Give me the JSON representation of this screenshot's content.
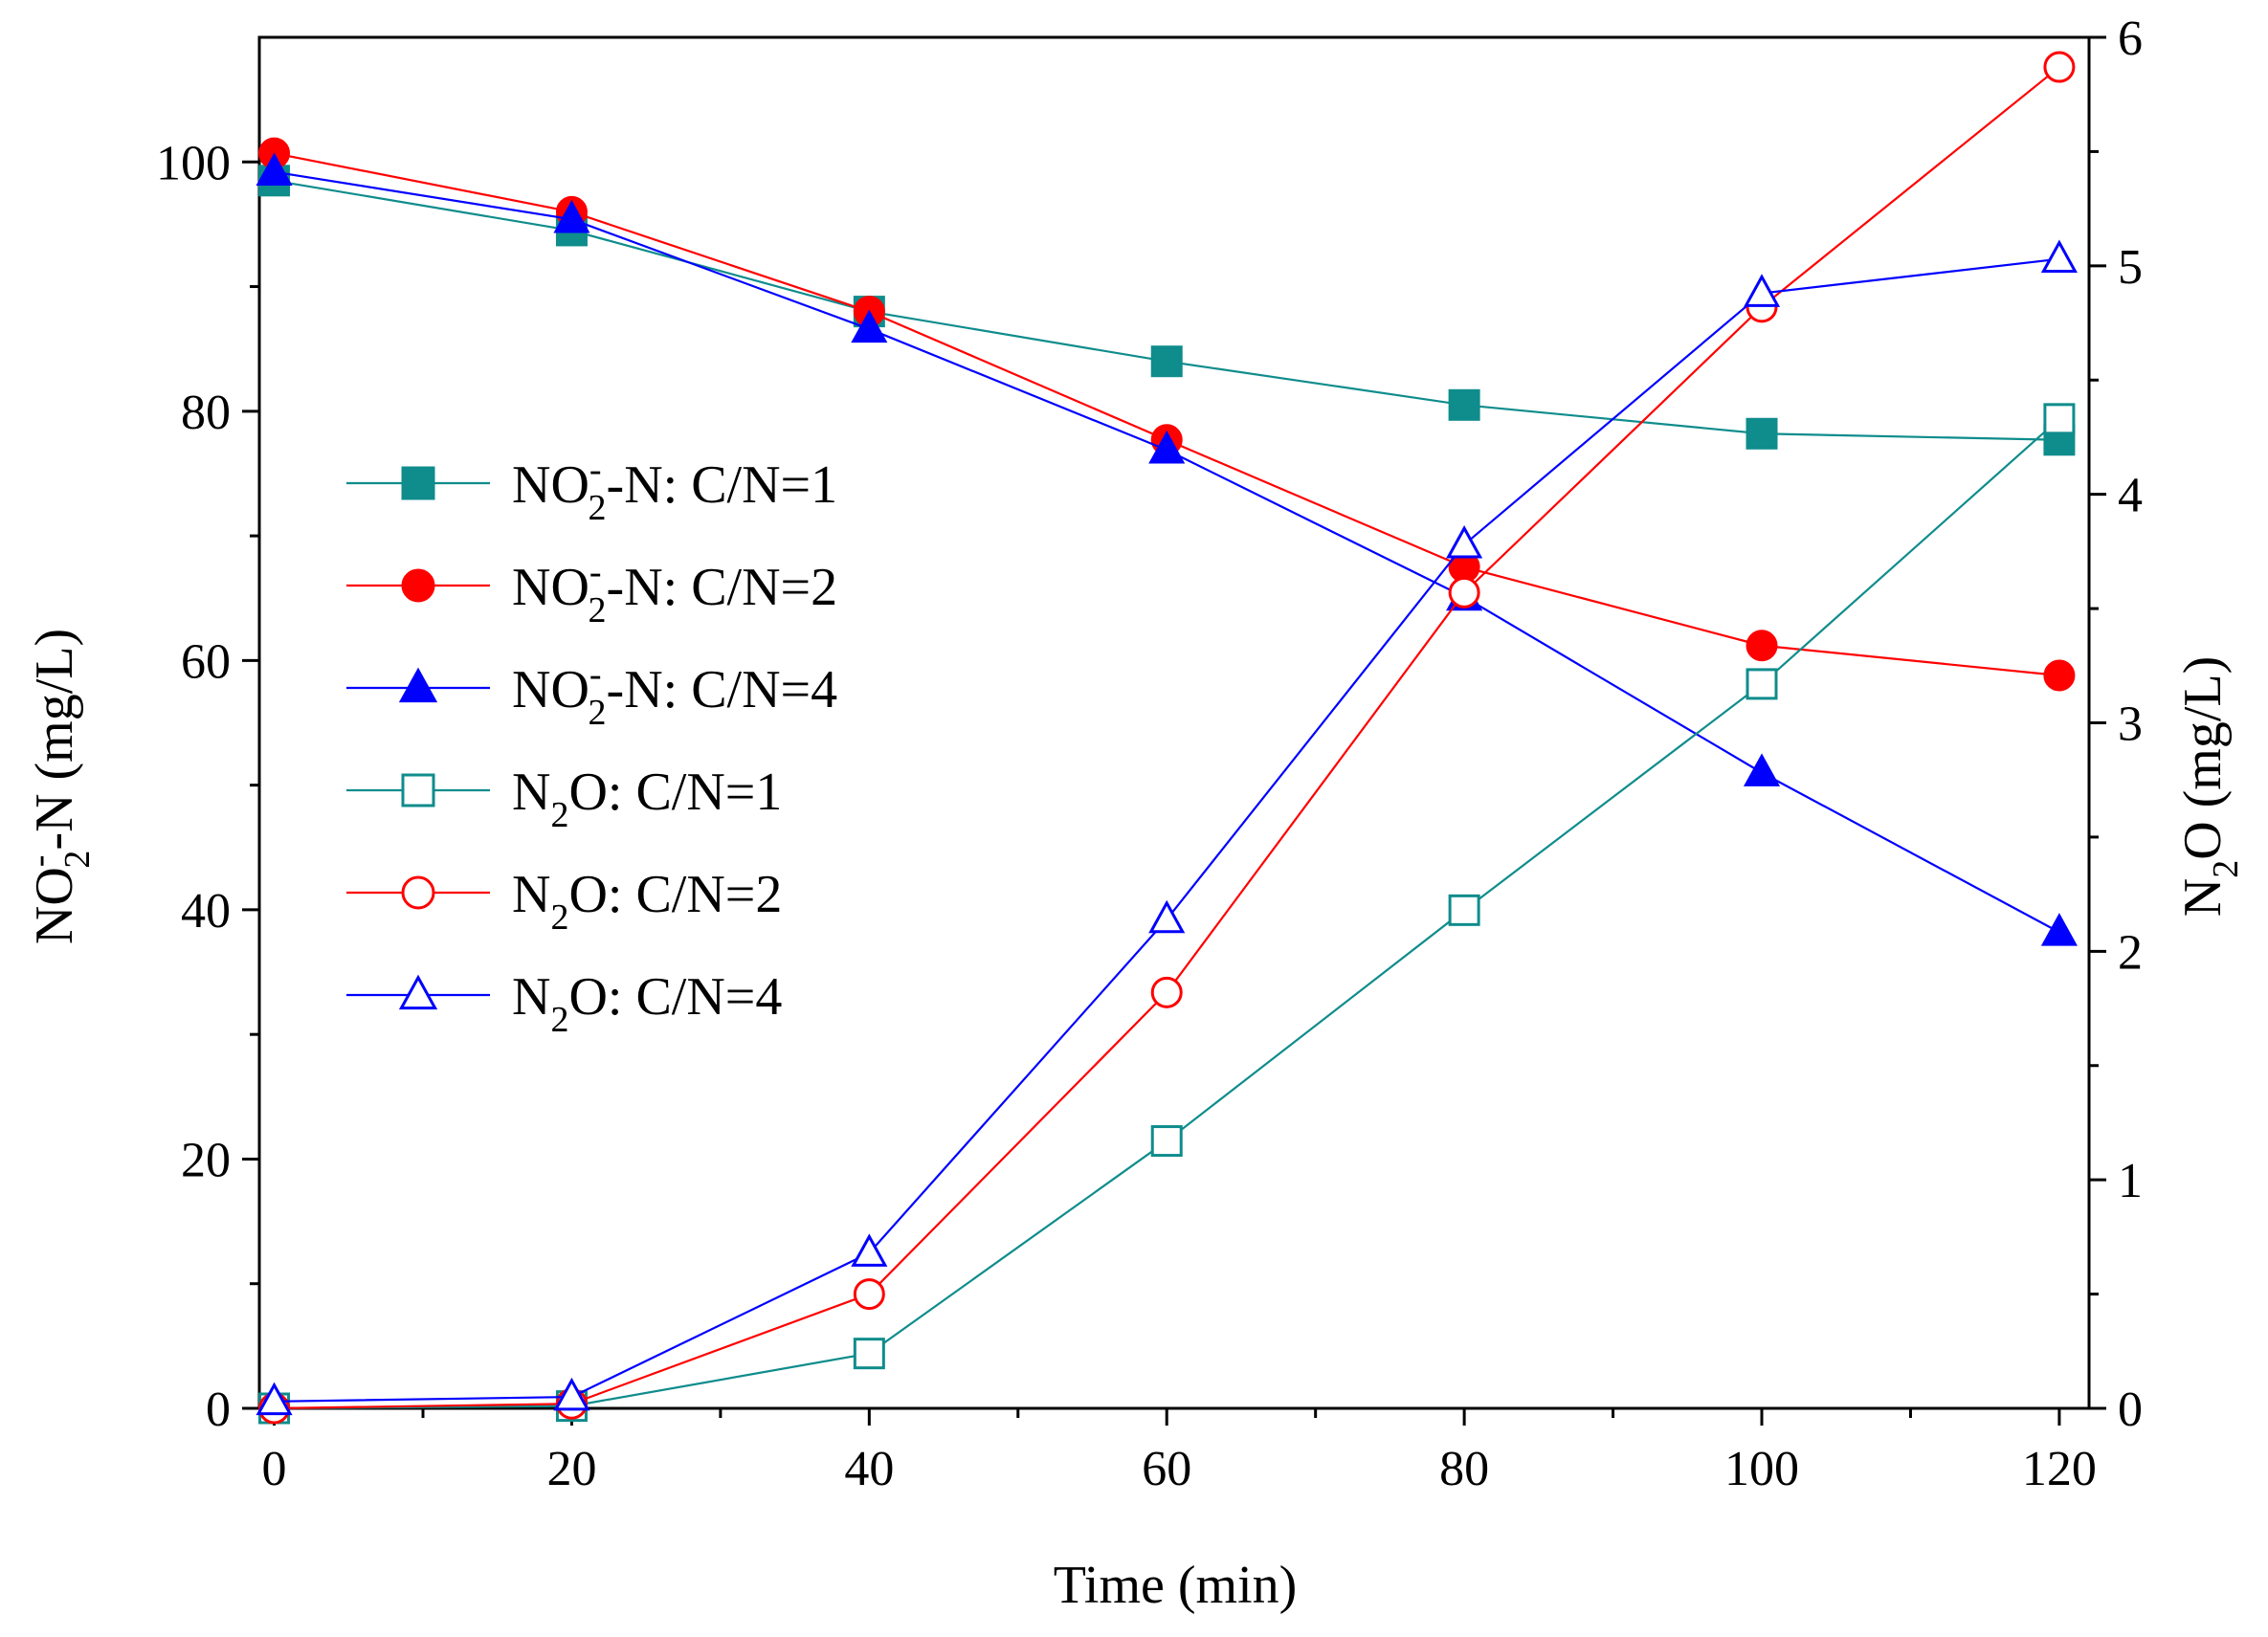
{
  "chart_data": {
    "type": "line",
    "x": [
      0,
      20,
      40,
      60,
      80,
      100,
      120
    ],
    "xlim": [
      -1,
      122
    ],
    "ylim_left": [
      0,
      110
    ],
    "ylim_right": [
      0,
      6
    ],
    "xticks": [
      0,
      20,
      40,
      60,
      80,
      100,
      120
    ],
    "yticks_left": [
      0,
      20,
      40,
      60,
      80,
      100
    ],
    "yticks_right": [
      0,
      1,
      2,
      3,
      4,
      5,
      6
    ],
    "xlabel": "Time (min)",
    "ylabel_left": {
      "main": "NO",
      "sup": "-",
      "sub": "2",
      "rest": "-N (mg/L)"
    },
    "ylabel_right": {
      "main": "N",
      "sub": "2",
      "rest": "O (mg/L)"
    },
    "legend_position": "left-center",
    "series": [
      {
        "name": "NO2- -N: C/N=1",
        "label": {
          "pre": "NO",
          "sup": "-",
          "sub": "2",
          "post": "-N: C/N=1"
        },
        "axis": "left",
        "color": "#0f8c8c",
        "marker": "square",
        "filled": true,
        "values": [
          98.5,
          94.5,
          88.0,
          84.0,
          80.5,
          78.2,
          77.7
        ]
      },
      {
        "name": "NO2- -N: C/N=2",
        "label": {
          "pre": "NO",
          "sup": "-",
          "sub": "2",
          "post": "-N: C/N=2"
        },
        "axis": "left",
        "color": "#ff0000",
        "marker": "circle",
        "filled": true,
        "values": [
          100.7,
          96.0,
          88.0,
          77.7,
          67.5,
          61.2,
          58.8
        ]
      },
      {
        "name": "NO2- -N: C/N=4",
        "label": {
          "pre": "NO",
          "sup": "-",
          "sub": "2",
          "post": "-N: C/N=4"
        },
        "axis": "left",
        "color": "#0000ff",
        "marker": "triangle",
        "filled": true,
        "values": [
          99.2,
          95.4,
          86.6,
          76.9,
          65.1,
          51.0,
          38.2
        ]
      },
      {
        "name": "N2O: C/N=1",
        "label": {
          "pre": "N",
          "sup": "",
          "sub": "2",
          "post": "O: C/N=1"
        },
        "axis": "right",
        "color": "#0f8c8c",
        "marker": "square",
        "filled": false,
        "values": [
          0.0,
          0.01,
          0.24,
          1.17,
          2.18,
          3.17,
          4.33
        ]
      },
      {
        "name": "N2O: C/N=2",
        "label": {
          "pre": "N",
          "sup": "",
          "sub": "2",
          "post": "O: C/N=2"
        },
        "axis": "right",
        "color": "#ff0000",
        "marker": "circle",
        "filled": false,
        "values": [
          0.0,
          0.02,
          0.5,
          1.82,
          3.57,
          4.82,
          5.87
        ]
      },
      {
        "name": "N2O: C/N=4",
        "label": {
          "pre": "N",
          "sup": "",
          "sub": "2",
          "post": "O: C/N=4"
        },
        "axis": "right",
        "color": "#0000ff",
        "marker": "triangle",
        "filled": false,
        "values": [
          0.03,
          0.05,
          0.68,
          2.14,
          3.78,
          4.88,
          5.03
        ]
      }
    ]
  }
}
